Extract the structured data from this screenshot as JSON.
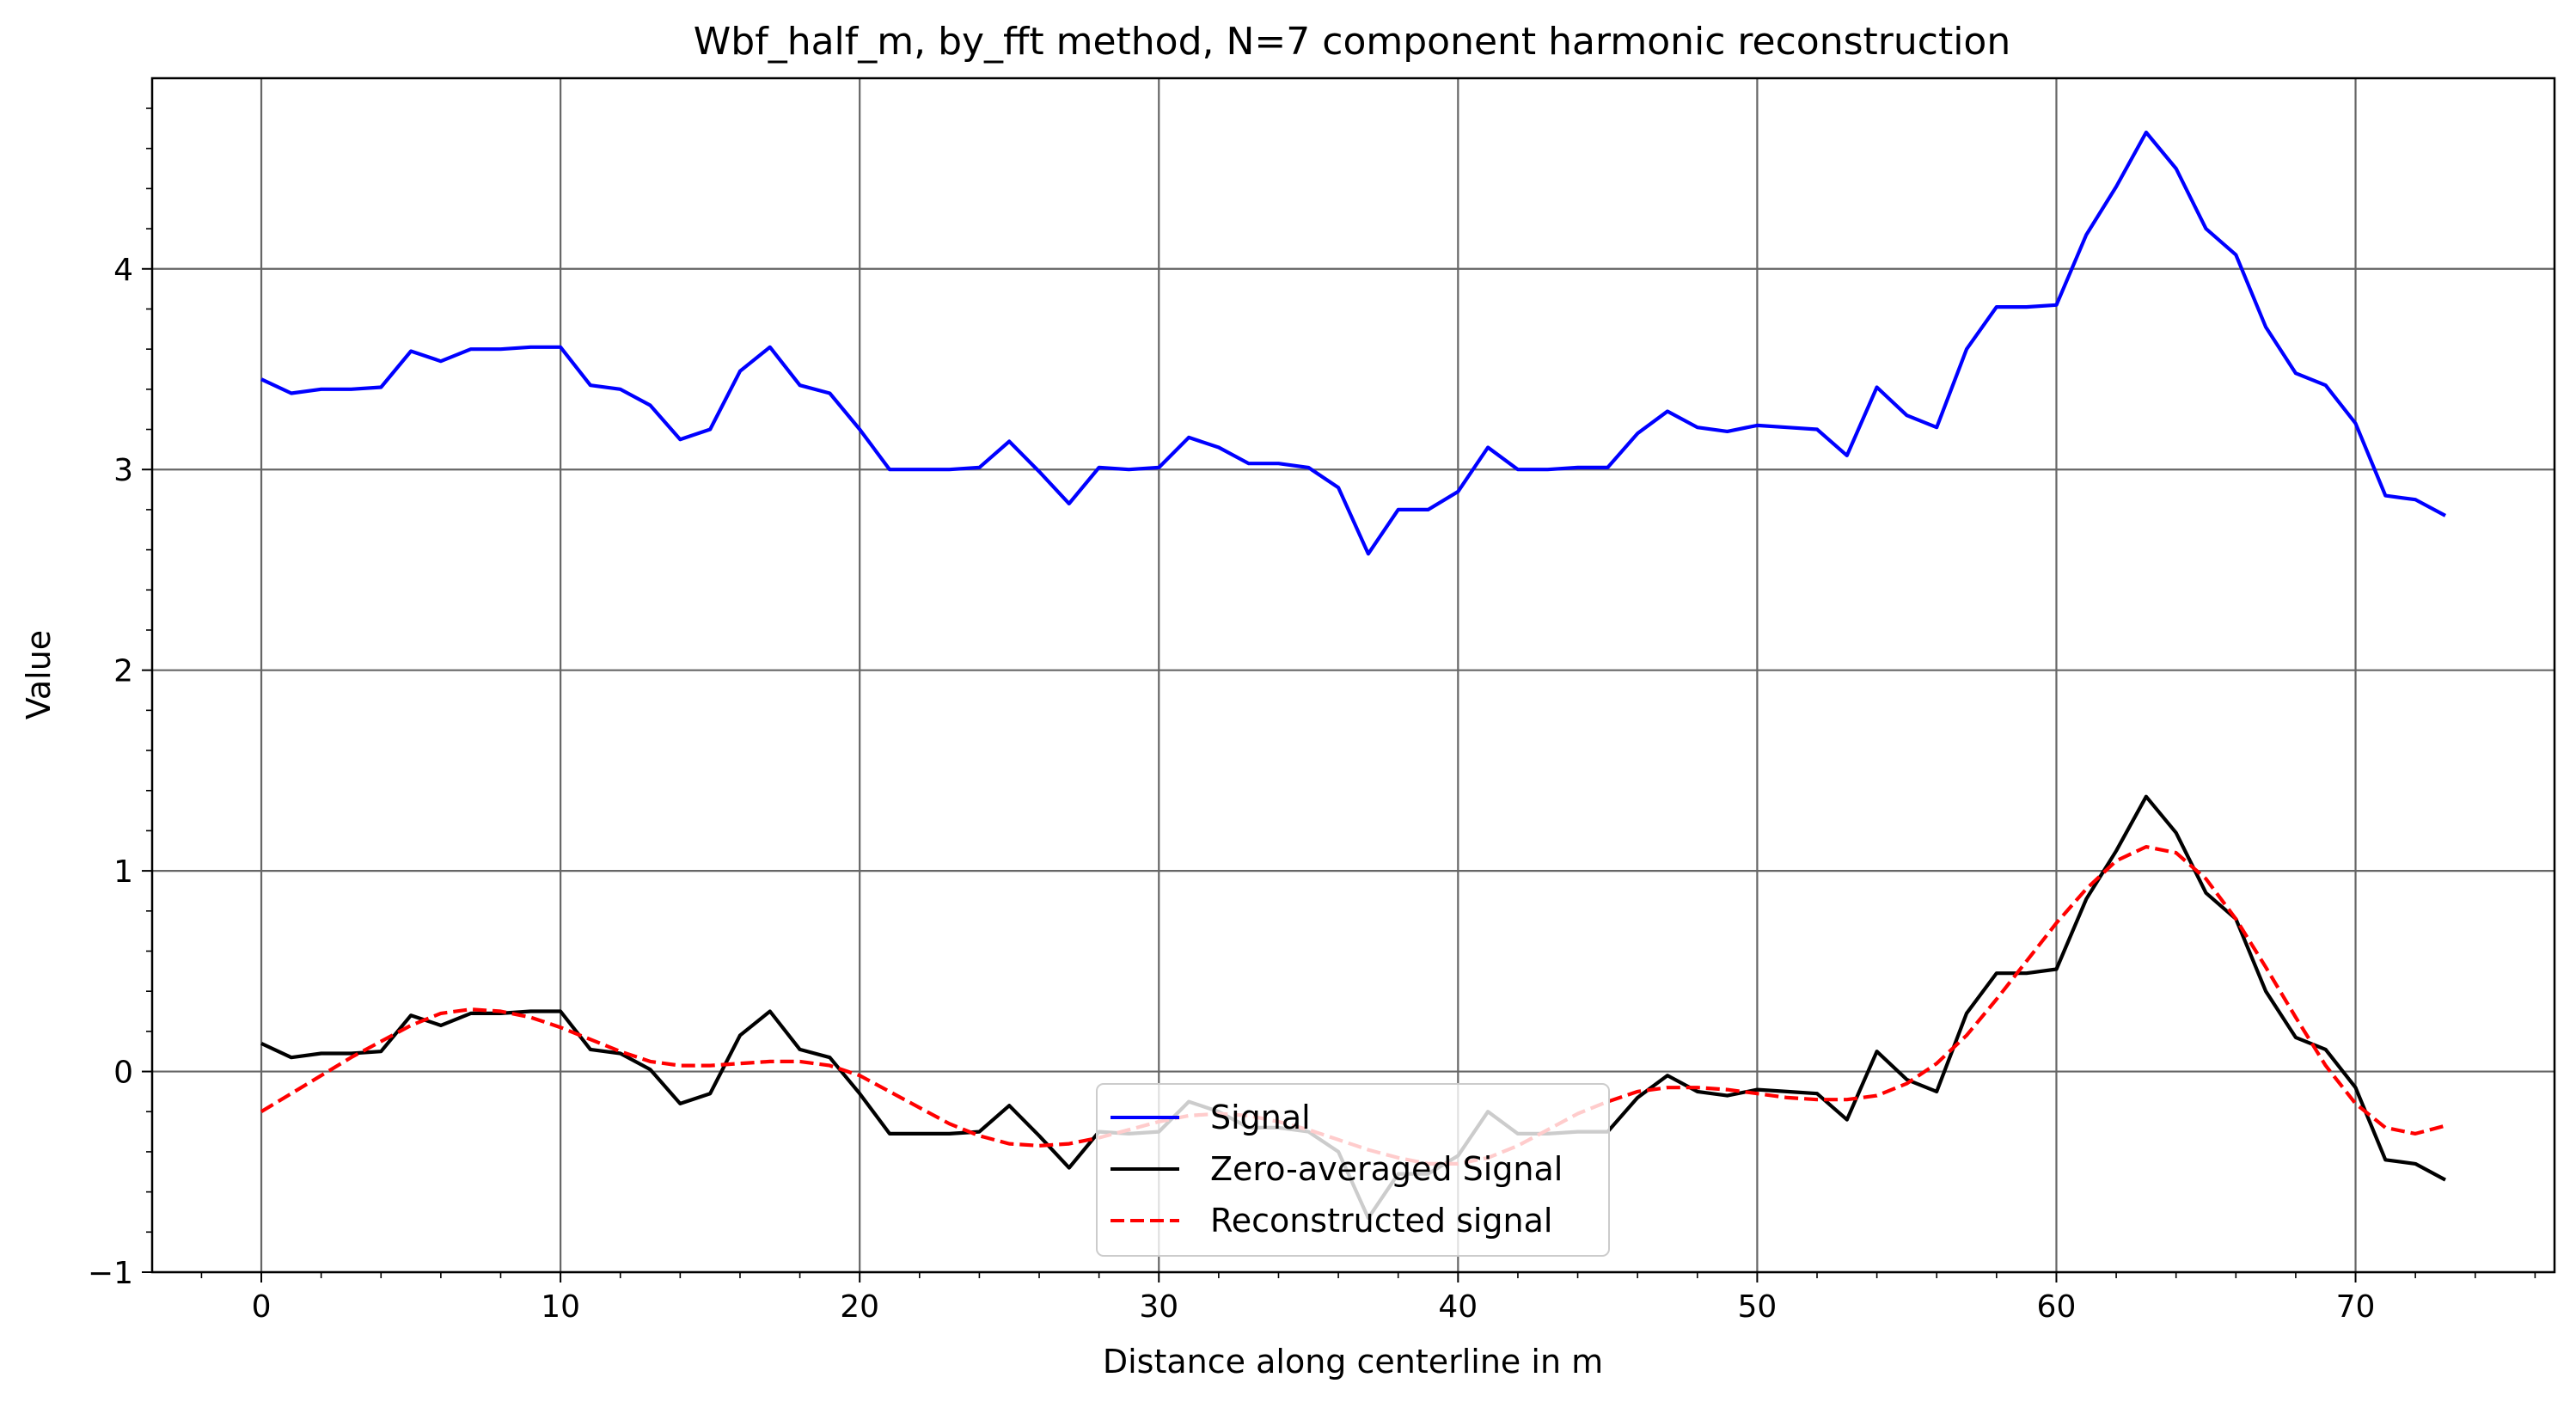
{
  "chart_data": {
    "type": "line",
    "title": "Wbf_half_m, by_fft method, N=7 component harmonic reconstruction",
    "xlabel": "Distance along centerline in m",
    "ylabel": "Value",
    "xlim": [
      -3.65,
      76.65
    ],
    "ylim": [
      -1.0,
      4.95
    ],
    "xticks": [
      0,
      10,
      20,
      30,
      40,
      50,
      60,
      70
    ],
    "yticks": [
      -1,
      0,
      1,
      2,
      3,
      4
    ],
    "xticklabels": [
      "0",
      "10",
      "20",
      "30",
      "40",
      "50",
      "60",
      "70"
    ],
    "yticklabels": [
      "−1",
      "0",
      "1",
      "2",
      "3",
      "4"
    ],
    "xminor_step": 2,
    "yminor_step": 0.2,
    "grid": true,
    "grid_color": "#666666",
    "legend_position": "lower center",
    "x": [
      0,
      1,
      2,
      3,
      4,
      5,
      6,
      7,
      8,
      9,
      10,
      11,
      12,
      13,
      14,
      15,
      16,
      17,
      18,
      19,
      20,
      21,
      22,
      23,
      24,
      25,
      26,
      27,
      28,
      29,
      30,
      31,
      32,
      33,
      34,
      35,
      36,
      37,
      38,
      39,
      40,
      41,
      42,
      43,
      44,
      45,
      46,
      47,
      48,
      49,
      50,
      51,
      52,
      53,
      54,
      55,
      56,
      57,
      58,
      59,
      60,
      61,
      62,
      63,
      64,
      65,
      66,
      67,
      68,
      69,
      70,
      71,
      72,
      73
    ],
    "series": [
      {
        "name": "Signal",
        "color": "#0000ff",
        "style": "solid",
        "values": [
          3.45,
          3.38,
          3.4,
          3.4,
          3.41,
          3.59,
          3.54,
          3.6,
          3.6,
          3.61,
          3.61,
          3.42,
          3.4,
          3.32,
          3.15,
          3.2,
          3.49,
          3.61,
          3.42,
          3.38,
          3.2,
          3.0,
          3.0,
          3.0,
          3.01,
          3.14,
          2.99,
          2.83,
          3.01,
          3.0,
          3.01,
          3.16,
          3.11,
          3.03,
          3.03,
          3.01,
          2.91,
          2.58,
          2.8,
          2.8,
          2.89,
          3.11,
          3.0,
          3.0,
          3.01,
          3.01,
          3.18,
          3.29,
          3.21,
          3.19,
          3.22,
          3.21,
          3.2,
          3.07,
          3.41,
          3.27,
          3.21,
          3.6,
          3.81,
          3.81,
          3.82,
          4.17,
          4.41,
          4.68,
          4.5,
          4.2,
          4.07,
          3.71,
          3.48,
          3.42,
          3.23,
          2.87,
          2.85,
          2.77
        ]
      },
      {
        "name": "Zero-averaged Signal",
        "color": "#000000",
        "style": "solid",
        "values": [
          0.14,
          0.07,
          0.09,
          0.09,
          0.1,
          0.28,
          0.23,
          0.29,
          0.29,
          0.3,
          0.3,
          0.11,
          0.09,
          0.01,
          -0.16,
          -0.11,
          0.18,
          0.3,
          0.11,
          0.07,
          -0.11,
          -0.31,
          -0.31,
          -0.31,
          -0.3,
          -0.17,
          -0.32,
          -0.48,
          -0.3,
          -0.31,
          -0.3,
          -0.15,
          -0.2,
          -0.28,
          -0.28,
          -0.3,
          -0.4,
          -0.73,
          -0.51,
          -0.51,
          -0.42,
          -0.2,
          -0.31,
          -0.31,
          -0.3,
          -0.3,
          -0.13,
          -0.02,
          -0.1,
          -0.12,
          -0.09,
          -0.1,
          -0.11,
          -0.24,
          0.1,
          -0.04,
          -0.1,
          0.29,
          0.49,
          0.49,
          0.51,
          0.86,
          1.1,
          1.37,
          1.19,
          0.89,
          0.76,
          0.4,
          0.17,
          0.11,
          -0.08,
          -0.44,
          -0.46,
          -0.54
        ]
      },
      {
        "name": "Reconstructed signal",
        "color": "#ff0000",
        "style": "dashed",
        "values": [
          -0.2,
          -0.11,
          -0.02,
          0.07,
          0.15,
          0.23,
          0.29,
          0.31,
          0.3,
          0.27,
          0.22,
          0.16,
          0.1,
          0.05,
          0.03,
          0.03,
          0.04,
          0.05,
          0.05,
          0.03,
          -0.02,
          -0.1,
          -0.18,
          -0.26,
          -0.32,
          -0.36,
          -0.37,
          -0.36,
          -0.33,
          -0.29,
          -0.25,
          -0.22,
          -0.21,
          -0.22,
          -0.25,
          -0.29,
          -0.34,
          -0.39,
          -0.43,
          -0.46,
          -0.46,
          -0.43,
          -0.37,
          -0.29,
          -0.21,
          -0.15,
          -0.1,
          -0.08,
          -0.08,
          -0.09,
          -0.11,
          -0.13,
          -0.14,
          -0.14,
          -0.12,
          -0.06,
          0.04,
          0.18,
          0.36,
          0.55,
          0.74,
          0.91,
          1.05,
          1.12,
          1.09,
          0.96,
          0.76,
          0.52,
          0.27,
          0.03,
          -0.16,
          -0.28,
          -0.31,
          -0.27
        ]
      }
    ]
  }
}
